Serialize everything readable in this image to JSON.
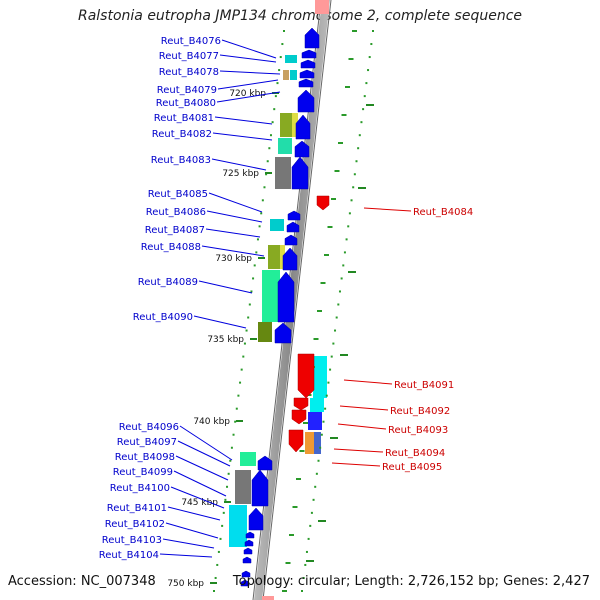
{
  "title": "Ralstonia eutropha JMP134 chromosome 2, complete sequence",
  "accession": "Accession: NC_007348",
  "topology": "Topology: circular; Length: 2,726,152 bp; Genes: 2,427",
  "colors": {
    "plus_strand_gene": "#0000ee",
    "minus_strand_gene": "#ee0000",
    "plus_label": "#0000cc",
    "minus_label": "#cc0000",
    "tick": "#228822",
    "backbone": "#888888"
  },
  "kbp_ticks": [
    "720 kbp",
    "725 kbp",
    "730 kbp",
    "735 kbp",
    "740 kbp",
    "745 kbp",
    "750 kbp"
  ],
  "left_genes": [
    "Reut_B4076",
    "Reut_B4077",
    "Reut_B4078",
    "Reut_B4079",
    "Reut_B4080",
    "Reut_B4081",
    "Reut_B4082",
    "Reut_B4083",
    "Reut_B4085",
    "Reut_B4086",
    "Reut_B4087",
    "Reut_B4088",
    "Reut_B4089",
    "Reut_B4090",
    "Reut_B4096",
    "Reut_B4097",
    "Reut_B4098",
    "Reut_B4099",
    "Reut_B4100",
    "Reut_B4101",
    "Reut_B4102",
    "Reut_B4103",
    "Reut_B4104"
  ],
  "right_genes": [
    "Reut_B4084",
    "Reut_B4091",
    "Reut_B4092",
    "Reut_B4093",
    "Reut_B4094",
    "Reut_B4095"
  ]
}
